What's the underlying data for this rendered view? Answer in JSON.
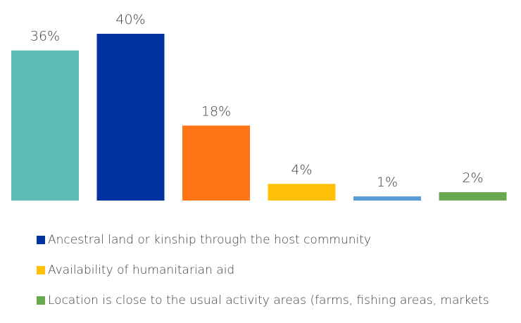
{
  "chart_data": {
    "type": "bar",
    "values": [
      36,
      40,
      18,
      4,
      1,
      2
    ],
    "value_labels": [
      "36%",
      "40%",
      "18%",
      "4%",
      "1%",
      "2%"
    ],
    "colors": [
      "#5fbcb4",
      "#0033a0",
      "#ff7415",
      "#ffc107",
      "#5b9bd5",
      "#6aa84f"
    ],
    "ylim": [
      0,
      40
    ],
    "grid": false,
    "legend_position": "bottom",
    "legend": [
      {
        "label": "Ancestral land or kinship through the host community",
        "color": "#0033a0"
      },
      {
        "label": "Availability of humanitarian aid",
        "color": "#ffc107"
      },
      {
        "label": "Location is close to the usual activity areas  (farms, fishing areas, markets",
        "color": "#6aa84f"
      }
    ]
  }
}
